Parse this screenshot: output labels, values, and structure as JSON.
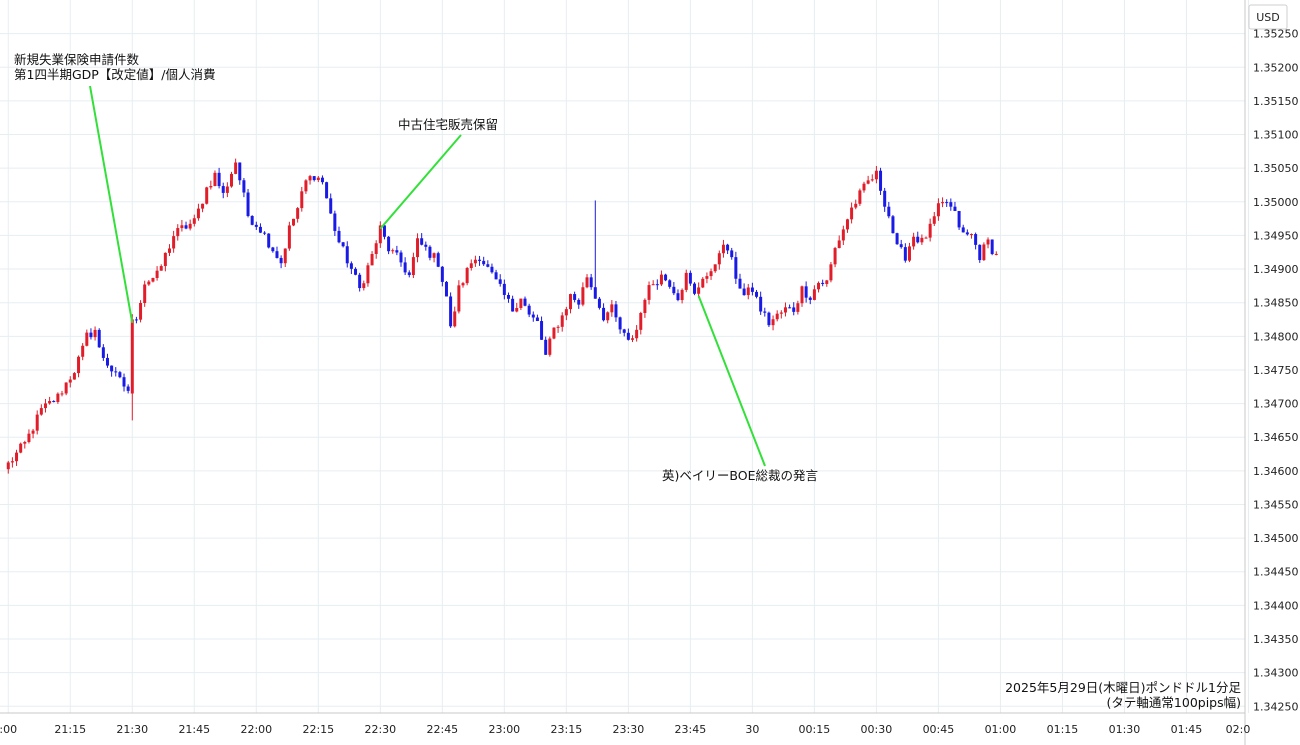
{
  "chart_data": {
    "type": "candlestick",
    "currency_label": "USD",
    "y_ticks": [
      "1.35250",
      "1.35200",
      "1.35150",
      "1.35100",
      "1.35050",
      "1.35000",
      "1.34950",
      "1.34900",
      "1.34850",
      "1.34800",
      "1.34750",
      "1.34700",
      "1.34650",
      "1.34600",
      "1.34550",
      "1.34500",
      "1.34450",
      "1.34400",
      "1.34350",
      "1.34300",
      "1.34250"
    ],
    "ylim": [
      1.3424,
      1.353
    ],
    "x_tick_labels": [
      ":00",
      "21:15",
      "21:30",
      "21:45",
      "22:00",
      "22:15",
      "22:30",
      "22:45",
      "23:00",
      "23:15",
      "23:30",
      "23:45",
      "30",
      "00:15",
      "00:30",
      "00:45",
      "01:00",
      "01:15",
      "01:30",
      "01:45",
      "02:0"
    ],
    "grid": true,
    "up_color": "#e11d2a",
    "down_color": "#1a1ae6",
    "annotation_color": "#33e03a",
    "annotations": [
      {
        "lines": [
          "新規失業保険申請件数",
          "第1四半期GDP【改定値】/個人消費"
        ],
        "price": 1.3482
      },
      {
        "lines": [
          "中古住宅販売保留"
        ],
        "price": 1.3496
      },
      {
        "lines": [
          "英)ベイリーBOE総裁の発言"
        ],
        "price": 1.3486
      }
    ],
    "caption": [
      "2025年5月29日(木曜日)ポンドドル1分足",
      "(タテ軸通常100pips幅)"
    ],
    "price_path": [
      [
        0,
        1.3461
      ],
      [
        4,
        1.3464
      ],
      [
        8,
        1.3469
      ],
      [
        12,
        1.3471
      ],
      [
        16,
        1.3475
      ],
      [
        18,
        1.3478
      ],
      [
        19,
        1.348
      ],
      [
        21,
        1.3481
      ],
      [
        22,
        1.3478
      ],
      [
        24,
        1.3476
      ],
      [
        26,
        1.3474
      ],
      [
        29,
        1.3472
      ],
      [
        30,
        1.3482
      ],
      [
        31,
        1.3483
      ],
      [
        33,
        1.3488
      ],
      [
        36,
        1.3489
      ],
      [
        38,
        1.3492
      ],
      [
        40,
        1.3495
      ],
      [
        42,
        1.3496
      ],
      [
        45,
        1.3497
      ],
      [
        48,
        1.3502
      ],
      [
        50,
        1.3504
      ],
      [
        52,
        1.3501
      ],
      [
        55,
        1.3506
      ],
      [
        58,
        1.3498
      ],
      [
        61,
        1.3496
      ],
      [
        64,
        1.3493
      ],
      [
        66,
        1.3491
      ],
      [
        68,
        1.3496
      ],
      [
        70,
        1.3499
      ],
      [
        72,
        1.3503
      ],
      [
        74,
        1.3504
      ],
      [
        76,
        1.3503
      ],
      [
        78,
        1.3498
      ],
      [
        80,
        1.3494
      ],
      [
        83,
        1.349
      ],
      [
        85,
        1.3487
      ],
      [
        88,
        1.3492
      ],
      [
        90,
        1.3496
      ],
      [
        92,
        1.3493
      ],
      [
        95,
        1.3491
      ],
      [
        97,
        1.3489
      ],
      [
        99,
        1.3494
      ],
      [
        101,
        1.3493
      ],
      [
        104,
        1.3491
      ],
      [
        106,
        1.3486
      ],
      [
        107,
        1.3481
      ],
      [
        109,
        1.3487
      ],
      [
        112,
        1.3491
      ],
      [
        114,
        1.3492
      ],
      [
        116,
        1.349
      ],
      [
        118,
        1.3488
      ],
      [
        120,
        1.3486
      ],
      [
        122,
        1.3484
      ],
      [
        124,
        1.3486
      ],
      [
        126,
        1.3483
      ],
      [
        128,
        1.3482
      ],
      [
        130,
        1.3477
      ],
      [
        132,
        1.3481
      ],
      [
        134,
        1.3483
      ],
      [
        136,
        1.3486
      ],
      [
        138,
        1.3485
      ],
      [
        140,
        1.3489
      ],
      [
        142,
        1.3486
      ],
      [
        144,
        1.3483
      ],
      [
        146,
        1.3484
      ],
      [
        148,
        1.3481
      ],
      [
        150,
        1.3479
      ],
      [
        152,
        1.3481
      ],
      [
        154,
        1.3486
      ],
      [
        156,
        1.3488
      ],
      [
        158,
        1.3489
      ],
      [
        160,
        1.3488
      ],
      [
        162,
        1.3486
      ],
      [
        164,
        1.3489
      ],
      [
        166,
        1.3486
      ],
      [
        168,
        1.3489
      ],
      [
        170,
        1.3489
      ],
      [
        172,
        1.3493
      ],
      [
        174,
        1.3493
      ],
      [
        176,
        1.3489
      ],
      [
        178,
        1.3486
      ],
      [
        180,
        1.3487
      ],
      [
        182,
        1.3484
      ],
      [
        184,
        1.3482
      ],
      [
        186,
        1.3483
      ],
      [
        188,
        1.3484
      ],
      [
        190,
        1.3484
      ],
      [
        192,
        1.3487
      ],
      [
        194,
        1.3486
      ],
      [
        196,
        1.3488
      ],
      [
        198,
        1.3488
      ],
      [
        200,
        1.3493
      ],
      [
        202,
        1.3496
      ],
      [
        204,
        1.3499
      ],
      [
        206,
        1.3501
      ],
      [
        208,
        1.3503
      ],
      [
        210,
        1.3504
      ],
      [
        211,
        1.3502
      ],
      [
        213,
        1.3498
      ],
      [
        215,
        1.3493
      ],
      [
        217,
        1.3492
      ],
      [
        219,
        1.3495
      ],
      [
        221,
        1.3494
      ],
      [
        223,
        1.3496
      ],
      [
        225,
        1.3499
      ],
      [
        227,
        1.35
      ],
      [
        229,
        1.3498
      ],
      [
        231,
        1.3495
      ],
      [
        233,
        1.3495
      ],
      [
        235,
        1.3492
      ],
      [
        237,
        1.3494
      ],
      [
        239,
        1.3492
      ]
    ]
  }
}
